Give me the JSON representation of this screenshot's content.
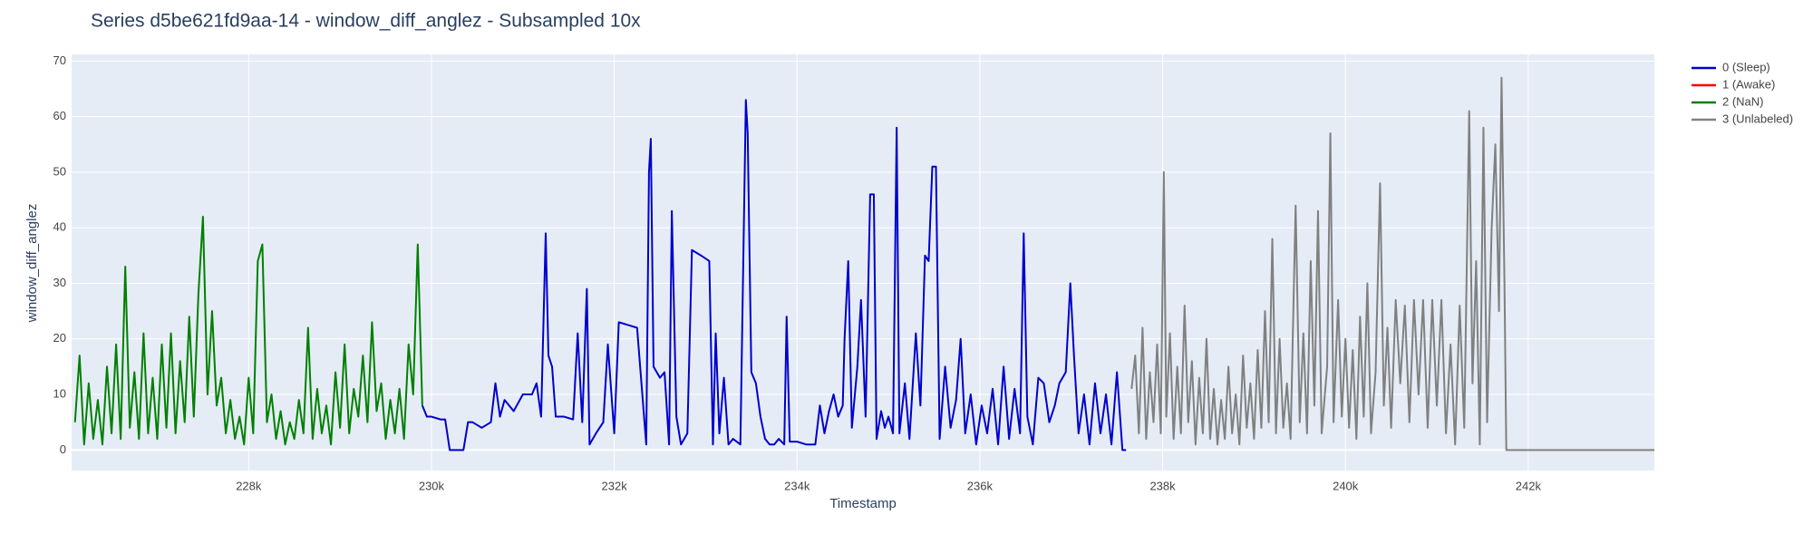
{
  "chart_data": {
    "type": "line",
    "title": "Series d5be621fd9aa-14 - window_diff_anglez - Subsampled 10x",
    "x_label": "Timestamp",
    "y_label": "window_diff_anglez",
    "xlim": [
      226063,
      243380
    ],
    "ylim": [
      -3.7,
      71.2
    ],
    "xticks": [
      {
        "value": 228000,
        "label": "228k"
      },
      {
        "value": 230000,
        "label": "230k"
      },
      {
        "value": 232000,
        "label": "232k"
      },
      {
        "value": 234000,
        "label": "234k"
      },
      {
        "value": 236000,
        "label": "236k"
      },
      {
        "value": 238000,
        "label": "238k"
      },
      {
        "value": 240000,
        "label": "240k"
      },
      {
        "value": 242000,
        "label": "242k"
      }
    ],
    "yticks": [
      0,
      10,
      20,
      30,
      40,
      50,
      60,
      70
    ],
    "grid": true,
    "series": [
      {
        "name": "0 (Sleep)",
        "color": "#0000cd",
        "x": [
          229900,
          229950,
          230000,
          230100,
          230150,
          230200,
          230350,
          230400,
          230450,
          230550,
          230650,
          230700,
          230750,
          230800,
          230900,
          231000,
          231100,
          231150,
          231200,
          231250,
          231280,
          231320,
          231360,
          231450,
          231550,
          231600,
          231650,
          231700,
          231730,
          231800,
          231880,
          231930,
          232000,
          232050,
          232150,
          232250,
          232350,
          232380,
          232400,
          232430,
          232500,
          232550,
          232600,
          232630,
          232680,
          232730,
          232800,
          232850,
          232950,
          233040,
          233080,
          233110,
          233150,
          233200,
          233250,
          233300,
          233380,
          233440,
          233460,
          233500,
          233550,
          233600,
          233650,
          233700,
          233750,
          233800,
          233860,
          233886,
          233920,
          234000,
          234100,
          234200,
          234250,
          234300,
          234350,
          234400,
          234450,
          234500,
          234520,
          234560,
          234600,
          234660,
          234700,
          234750,
          234800,
          234840,
          234870,
          234920,
          234960,
          235000,
          235050,
          235090,
          235120,
          235180,
          235230,
          235300,
          235350,
          235400,
          235440,
          235480,
          235520,
          235560,
          235620,
          235680,
          235740,
          235790,
          235840,
          235900,
          235960,
          236020,
          236080,
          236140,
          236200,
          236260,
          236320,
          236380,
          236440,
          236480,
          236520,
          236580,
          236640,
          236700,
          236760,
          236820,
          236870,
          236940,
          236990,
          237030,
          237080,
          237140,
          237200,
          237260,
          237320,
          237380,
          237440,
          237500,
          237560,
          237600
        ],
        "values": [
          8,
          6,
          6,
          5.5,
          5.5,
          0,
          0,
          5,
          5,
          4,
          5,
          12,
          6,
          9,
          7,
          10,
          10,
          12,
          6,
          39,
          17,
          15,
          6,
          6,
          5.5,
          21,
          5,
          29,
          1,
          3,
          5,
          19,
          3,
          23,
          22.5,
          22,
          1,
          50,
          56,
          15,
          13,
          14,
          1,
          43,
          6,
          1,
          3,
          36,
          35,
          34,
          1,
          21,
          3,
          13,
          1,
          2,
          1,
          63,
          57,
          14,
          12,
          6,
          2,
          1,
          1,
          2,
          1,
          24,
          1.5,
          1.5,
          1,
          1,
          8,
          3,
          7,
          10,
          6,
          8,
          20,
          34,
          4,
          15,
          27,
          6,
          46,
          46,
          2,
          7,
          4,
          6,
          3,
          58,
          3,
          12,
          2,
          21,
          8,
          35,
          34,
          51,
          51,
          2,
          15,
          4,
          9,
          20,
          3,
          10,
          1,
          8,
          3,
          11,
          1,
          15,
          2,
          11,
          3,
          39,
          6,
          1,
          13,
          12,
          5,
          8,
          12,
          14,
          30,
          17,
          3,
          10,
          1,
          12,
          3,
          10,
          1,
          14,
          0,
          0
        ]
      },
      {
        "name": "1 (Awake)",
        "color": "#ff0000",
        "x": [],
        "values": []
      },
      {
        "name": "2 (NaN)",
        "color": "#008000",
        "x": [
          226100,
          226150,
          226200,
          226250,
          226300,
          226350,
          226400,
          226450,
          226500,
          226550,
          226600,
          226650,
          226700,
          226750,
          226800,
          226850,
          226900,
          226950,
          227000,
          227050,
          227100,
          227150,
          227200,
          227250,
          227300,
          227350,
          227400,
          227450,
          227500,
          227550,
          227600,
          227650,
          227700,
          227750,
          227800,
          227850,
          227900,
          227950,
          228000,
          228050,
          228100,
          228150,
          228200,
          228250,
          228300,
          228350,
          228400,
          228450,
          228500,
          228550,
          228600,
          228650,
          228700,
          228750,
          228800,
          228850,
          228900,
          228950,
          229000,
          229050,
          229100,
          229150,
          229200,
          229250,
          229300,
          229350,
          229400,
          229450,
          229500,
          229550,
          229600,
          229650,
          229700,
          229750,
          229800,
          229850,
          229900
        ],
        "values": [
          5,
          17,
          1,
          12,
          2,
          9,
          1,
          15,
          3,
          19,
          2,
          33,
          4,
          14,
          2,
          21,
          3,
          13,
          2,
          19,
          4,
          21,
          3,
          16,
          5,
          24,
          6,
          28,
          42,
          10,
          25,
          8,
          13,
          3,
          9,
          2,
          6,
          1,
          13,
          3,
          34,
          37,
          5,
          10,
          2,
          7,
          1,
          5,
          2,
          9,
          3,
          22,
          2,
          11,
          3,
          8,
          1,
          14,
          4,
          19,
          3,
          11,
          6,
          17,
          5,
          23,
          7,
          12,
          2,
          9,
          3,
          11,
          2,
          19,
          10,
          37,
          8
        ]
      },
      {
        "name": "3 (Unlabeled)",
        "color": "#808080",
        "x": [
          237660,
          237700,
          237740,
          237780,
          237820,
          237860,
          237900,
          237940,
          237980,
          238013,
          238040,
          238080,
          238120,
          238160,
          238200,
          238240,
          238280,
          238320,
          238360,
          238400,
          238440,
          238480,
          238520,
          238560,
          238600,
          238640,
          238680,
          238720,
          238760,
          238800,
          238840,
          238880,
          238920,
          238960,
          239000,
          239040,
          239080,
          239120,
          239160,
          239200,
          239240,
          239280,
          239320,
          239360,
          239400,
          239455,
          239500,
          239540,
          239580,
          239620,
          239660,
          239700,
          239740,
          239800,
          239835,
          239870,
          239920,
          239960,
          240000,
          240040,
          240080,
          240120,
          240160,
          240200,
          240240,
          240280,
          240330,
          240379,
          240420,
          240460,
          240500,
          240550,
          240600,
          240650,
          240700,
          240750,
          240800,
          240850,
          240900,
          240950,
          241000,
          241050,
          241100,
          241150,
          241200,
          241250,
          241300,
          241354,
          241390,
          241430,
          241470,
          241510,
          241550,
          241600,
          241640,
          241680,
          241708,
          241740,
          241760,
          243380
        ],
        "values": [
          11,
          17,
          3,
          22,
          2,
          14,
          5,
          19,
          3,
          50,
          6,
          21,
          2,
          15,
          3,
          26,
          5,
          16,
          1,
          13,
          3,
          20,
          2,
          11,
          1,
          9,
          2,
          15,
          3,
          10,
          1,
          17,
          4,
          12,
          2,
          18,
          4,
          25,
          5,
          38,
          3,
          20,
          4,
          12,
          2,
          44,
          5,
          21,
          3,
          34,
          8,
          43,
          3,
          15,
          57,
          5,
          27,
          6,
          20,
          4,
          18,
          2,
          24,
          6,
          30,
          3,
          14,
          48,
          8,
          22,
          4,
          27,
          12,
          26,
          5,
          27,
          10,
          27,
          4,
          27,
          8,
          27,
          3,
          19,
          1,
          26,
          4,
          61,
          12,
          34,
          1,
          58,
          5,
          40,
          55,
          25,
          67,
          30,
          0,
          0
        ]
      }
    ]
  }
}
